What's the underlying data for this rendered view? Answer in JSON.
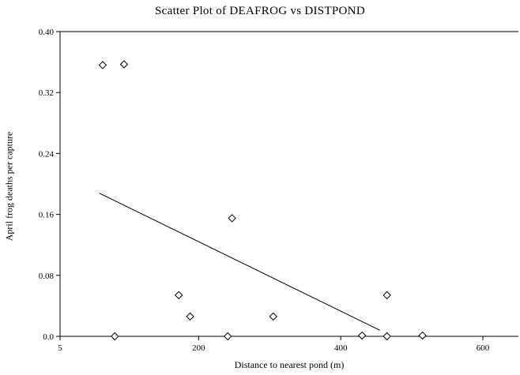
{
  "chart_data": {
    "type": "scatter",
    "title": "Scatter Plot of DEAFROG vs DISTPOND",
    "xlabel": "Distance to nearest pond (m)",
    "ylabel": "April frog deaths per capture",
    "xlim": [
      5,
      650
    ],
    "ylim": [
      0.0,
      0.4
    ],
    "x_ticks": [
      {
        "value": 5,
        "label": "5"
      },
      {
        "value": 200,
        "label": "200"
      },
      {
        "value": 400,
        "label": "400"
      },
      {
        "value": 600,
        "label": "600"
      }
    ],
    "y_ticks": [
      {
        "value": 0.0,
        "label": "0.0"
      },
      {
        "value": 0.08,
        "label": "0.08"
      },
      {
        "value": 0.16,
        "label": "0.16"
      },
      {
        "value": 0.24,
        "label": "0.24"
      },
      {
        "value": 0.32,
        "label": "0.32"
      },
      {
        "value": 0.4,
        "label": "0.40"
      }
    ],
    "points": [
      {
        "x": 65,
        "y": 0.356
      },
      {
        "x": 95,
        "y": 0.357
      },
      {
        "x": 82,
        "y": 0.0
      },
      {
        "x": 172,
        "y": 0.054
      },
      {
        "x": 188,
        "y": 0.026
      },
      {
        "x": 241,
        "y": 0.0
      },
      {
        "x": 247,
        "y": 0.155
      },
      {
        "x": 305,
        "y": 0.026
      },
      {
        "x": 430,
        "y": 0.001
      },
      {
        "x": 465,
        "y": 0.054
      },
      {
        "x": 465,
        "y": 0.0
      },
      {
        "x": 515,
        "y": 0.001
      }
    ],
    "trend_line": {
      "x": [
        60,
        455
      ],
      "y": [
        0.188,
        0.008
      ]
    },
    "grid": false,
    "legend": "none"
  }
}
